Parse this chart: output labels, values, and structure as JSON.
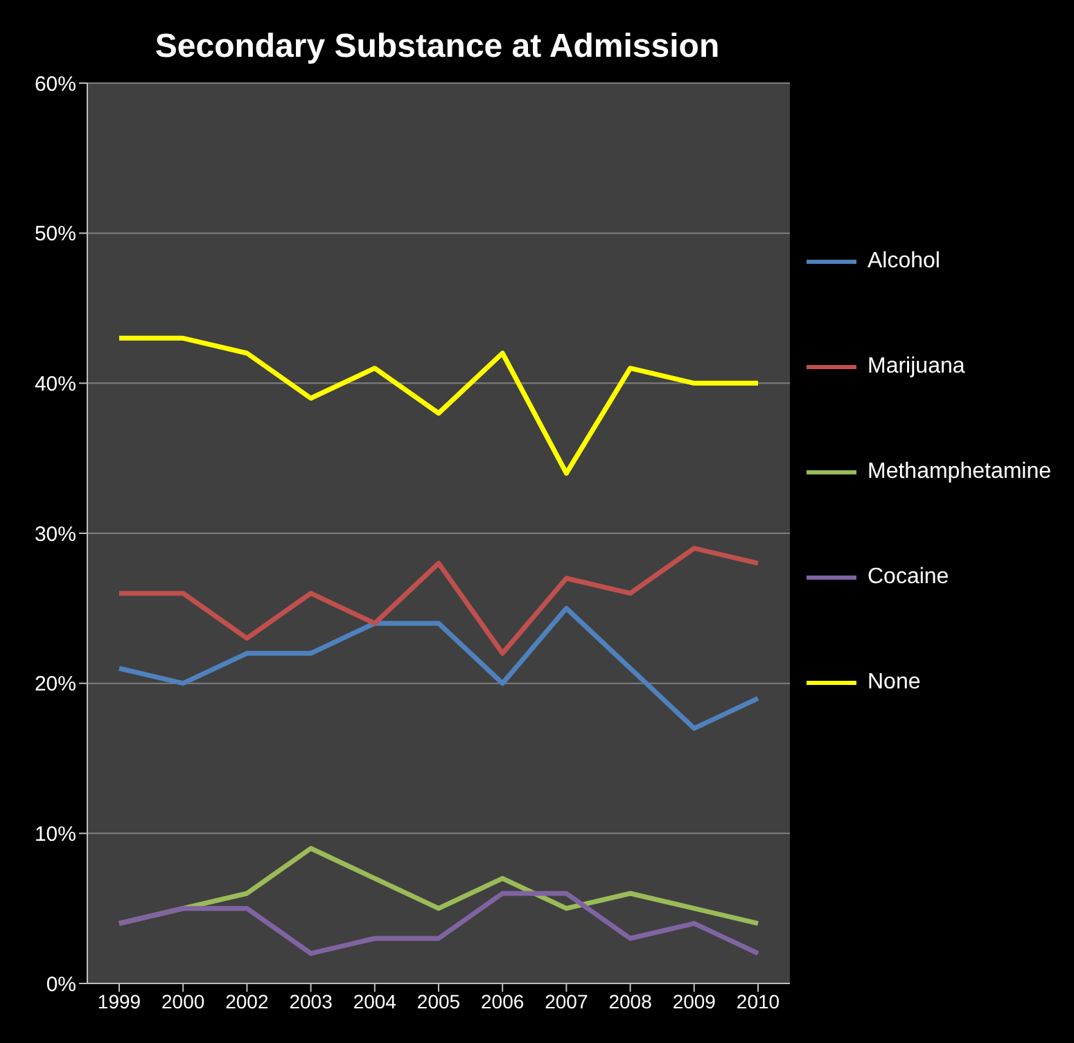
{
  "chart_data": {
    "type": "line",
    "title": "Secondary Substance at Admission",
    "categories": [
      "1999",
      "2000",
      "2002",
      "2003",
      "2004",
      "2005",
      "2006",
      "2007",
      "2008",
      "2009",
      "2010"
    ],
    "series": [
      {
        "name": "Alcohol",
        "color": "#4f81bd",
        "values": [
          21,
          20,
          22,
          22,
          24,
          24,
          20,
          25,
          21,
          17,
          19
        ]
      },
      {
        "name": "Marijuana",
        "color": "#c0504d",
        "values": [
          26,
          26,
          23,
          26,
          24,
          28,
          22,
          27,
          26,
          29,
          28
        ]
      },
      {
        "name": "Methamphetamine",
        "color": "#9bbb59",
        "values": [
          4,
          5,
          6,
          9,
          7,
          5,
          7,
          5,
          6,
          5,
          4
        ]
      },
      {
        "name": "Cocaine",
        "color": "#8064a2",
        "values": [
          4,
          5,
          5,
          2,
          3,
          3,
          6,
          6,
          3,
          4,
          2
        ]
      },
      {
        "name": "None",
        "color": "#ffff00",
        "values": [
          43,
          43,
          42,
          39,
          41,
          38,
          42,
          34,
          41,
          40,
          40
        ]
      }
    ],
    "ylim": [
      0,
      60
    ],
    "yticks": [
      {
        "value": 0,
        "label": "0%"
      },
      {
        "value": 10,
        "label": "10%"
      },
      {
        "value": 20,
        "label": "20%"
      },
      {
        "value": 30,
        "label": "30%"
      },
      {
        "value": 40,
        "label": "40%"
      },
      {
        "value": 50,
        "label": "50%"
      },
      {
        "value": 60,
        "label": "60%"
      }
    ],
    "grid": "y",
    "legend": "right",
    "marker": "none",
    "line_style": "solid"
  }
}
